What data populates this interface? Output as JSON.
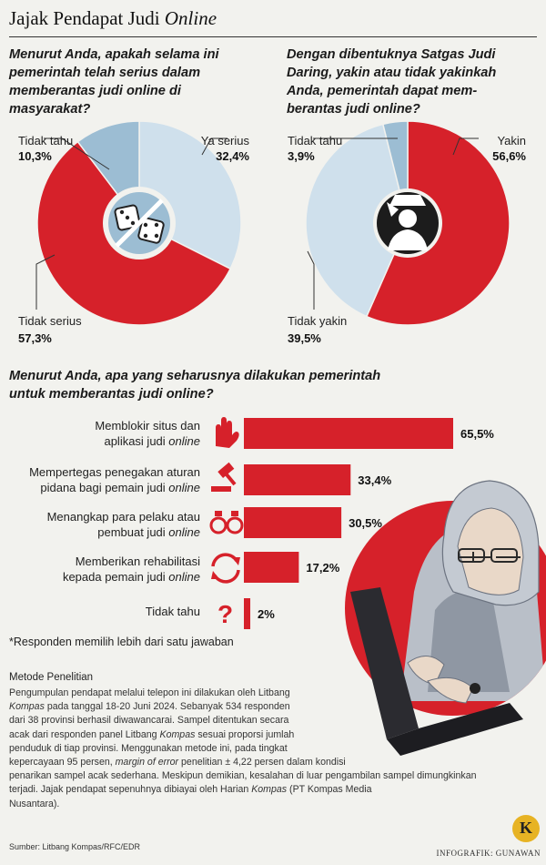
{
  "header": {
    "title_main": "Jajak Pendapat Judi ",
    "title_italic": "Online"
  },
  "q1": {
    "text": "Menurut Anda, apakah selama ini\npemerintah telah serius  dalam\nmemberantas judi online di\nmasyarakat?"
  },
  "q2": {
    "text": "Dengan dibentuknya Satgas Judi\nDaring, yakin atau tidak yakinkah\nAnda, pemerintah dapat mem-\nberantas judi online?"
  },
  "q3": {
    "text": "Menurut Anda, apa yang seharusnya dilakukan pemerintah\nuntuk memberantas judi online?"
  },
  "donut1_labels": {
    "tidak_tahu": "Tidak tahu",
    "tidak_tahu_pct": "10,3%",
    "ya_serius": "Ya serius",
    "ya_serius_pct": "32,4%",
    "tidak_serius": "Tidak serius",
    "tidak_serius_pct": "57,3%"
  },
  "donut2_labels": {
    "tidak_tahu": "Tidak tahu",
    "tidak_tahu_pct": "3,9%",
    "yakin": "Yakin",
    "yakin_pct": "56,6%",
    "tidak_yakin": "Tidak yakin",
    "tidak_yakin_pct": "39,5%"
  },
  "bars": [
    {
      "line1": "Memblokir situs dan",
      "line2a": "aplikasi judi ",
      "line2b": "online",
      "value_label": "65,5%",
      "icon": "hand-stop-icon"
    },
    {
      "line1": "Mempertegas penegakan aturan",
      "line2a": "pidana bagi pemain judi ",
      "line2b": "online",
      "value_label": "33,4%",
      "icon": "gavel-icon"
    },
    {
      "line1": "Menangkap para pelaku atau",
      "line2a": "pembuat judi ",
      "line2b": "online",
      "value_label": "30,5%",
      "icon": "handcuffs-icon"
    },
    {
      "line1": "Memberikan rehabilitasi",
      "line2a": "kepada pemain judi ",
      "line2b": "online",
      "value_label": "17,2%",
      "icon": "cycle-arrows-icon"
    },
    {
      "line1": "",
      "line2a": "Tidak tahu",
      "line2b": "",
      "value_label": "2%",
      "icon": "question-mark-icon"
    }
  ],
  "note": "*Responden memilih lebih dari satu jawaban",
  "method": {
    "heading": "Metode Penelitian",
    "body_lines": [
      [
        "Pengumpulan pendapat melalui telepon ini dilakukan oleh Litbang",
        ""
      ],
      [
        "",
        "Kompas",
        " pada tanggal 18-20 Juni 2024. Sebanyak 534 responden"
      ],
      [
        "dari 38 provinsi berhasil diwawancarai. Sampel ditentukan secara",
        ""
      ],
      [
        "acak dari responden panel Litbang ",
        "Kompas",
        " sesuai proporsi jumlah"
      ],
      [
        "penduduk di tiap provinsi. Menggunakan metode ini, pada tingkat",
        ""
      ],
      [
        "kepercayaan 95 persen, ",
        "margin of error",
        " penelitian ± 4,22 persen dalam kondisi"
      ],
      [
        "penarikan sampel acak sederhana. Meskipun demikian, kesalahan di luar pengambilan sampel dimungkinkan",
        ""
      ],
      [
        "terjadi. Jajak pendapat sepenuhnya dibiayai oleh Harian ",
        "Kompas",
        " (PT Kompas Media Nusantara)."
      ]
    ]
  },
  "footer": {
    "source": "Sumber: Litbang Kompas/RFC/EDR",
    "credit": "INFOGRAFIK: GUNAWAN",
    "logo_letter": "K"
  },
  "colors": {
    "red": "#d6212a",
    "light_blue": "#cfe0ec",
    "mid_blue": "#9cbdd3"
  },
  "chart_data": [
    {
      "type": "pie",
      "title": "Menurut Anda, apakah selama ini pemerintah telah serius dalam memberantas judi online di masyarakat?",
      "categories": [
        "Ya serius",
        "Tidak serius",
        "Tidak tahu"
      ],
      "values": [
        32.4,
        57.3,
        10.3
      ],
      "colors": [
        "#cfe0ec",
        "#d6212a",
        "#9cbdd3"
      ]
    },
    {
      "type": "pie",
      "title": "Dengan dibentuknya Satgas Judi Daring, yakin atau tidak yakinkah Anda, pemerintah dapat memberantas judi online?",
      "categories": [
        "Yakin",
        "Tidak yakin",
        "Tidak tahu"
      ],
      "values": [
        56.6,
        39.5,
        3.9
      ],
      "colors": [
        "#d6212a",
        "#cfe0ec",
        "#9cbdd3"
      ]
    },
    {
      "type": "bar",
      "title": "Menurut Anda, apa yang seharusnya dilakukan pemerintah untuk memberantas judi online?",
      "categories": [
        "Memblokir situs dan aplikasi judi online",
        "Mempertegas penegakan aturan pidana bagi pemain judi online",
        "Menangkap para pelaku atau pembuat judi online",
        "Memberikan rehabilitasi kepada pemain judi online",
        "Tidak tahu"
      ],
      "values": [
        65.5,
        33.4,
        30.5,
        17.2,
        2
      ]
    }
  ]
}
